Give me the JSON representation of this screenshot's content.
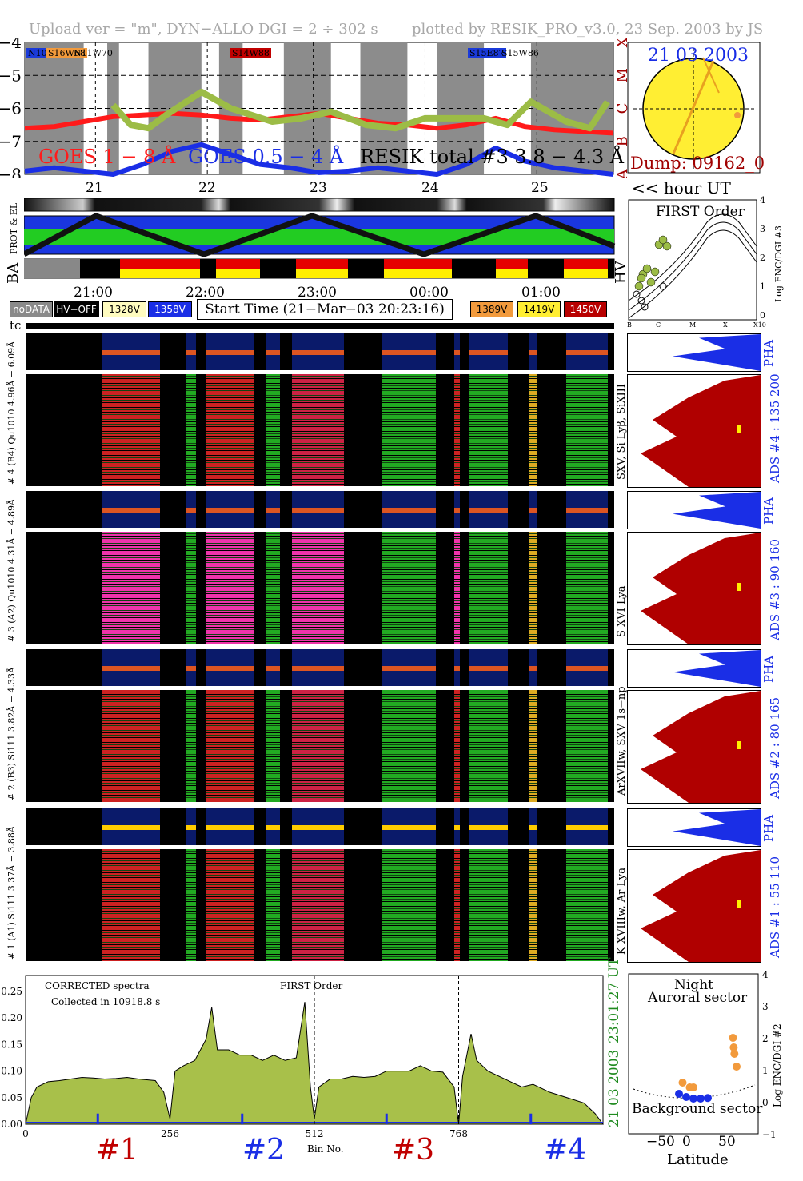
{
  "header": {
    "upload": "Upload ver = \"m\", DYN−ALLO DGI =   2 ÷ 302 s",
    "plotted": "plotted by RESIK_PRO_v3.0, 23 Sep. 2003 by JS"
  },
  "goes_panel": {
    "y_ticks": [
      "−4",
      "−5",
      "−6",
      "−7",
      "−8"
    ],
    "class_letters": [
      "X",
      "M",
      "C",
      "B",
      "A"
    ],
    "legend_goes_long": "GOES 1 − 8 Å",
    "legend_goes_short": "GOES 0.5 − 4 Å",
    "legend_resik": "RESIK total #3  3.8 − 4.3 Å",
    "flare_tags": [
      {
        "text": "N10E89",
        "color": "#1a3ad9"
      },
      {
        "text": "S16W68",
        "color": "#f29a3c"
      },
      {
        "text": "N11W70",
        "color": "#f29a3c"
      },
      {
        "text": "S14W88",
        "color": "#c00000"
      },
      {
        "text": "S15E87",
        "color": "#1a3ad9"
      },
      {
        "text": "S15W86",
        "color": "#f2a12e"
      }
    ],
    "colors": {
      "goes_long": "#ff1a1a",
      "goes_short": "#1a2ee6",
      "resik_green": "#9cbc46",
      "resik_orange": "#f29a3c",
      "shade": "#8c8c8c"
    }
  },
  "sun": {
    "date": "21 03 2003",
    "dump": "Dump: 09162_0"
  },
  "orbit_days": [
    "21",
    "22",
    "23",
    "24",
    "25"
  ],
  "hour_ut_label": "<< hour UT",
  "track_labels": {
    "prot": "PROT & EL",
    "ba": "BA",
    "hv": "HV"
  },
  "time_ticks": [
    "21:00",
    "22:00",
    "23:00",
    "00:00",
    "01:00"
  ],
  "legend": {
    "nodata": "noDATA",
    "hvoff": "HV−OFF",
    "v1328": "1328V",
    "v1358": "1358V",
    "start": "Start Time (21−Mar−03 20:23:16)",
    "v1389": "1389V",
    "v1419": "1419V",
    "v1450": "1450V"
  },
  "tc_label": "tc",
  "first_order_plot": {
    "title": "FIRST Order",
    "ylabel": "Log ENC/DGI #3",
    "y_ticks": [
      "4",
      "3",
      "2",
      "1",
      "0"
    ],
    "x_ticks": [
      "B",
      "C",
      "M",
      "X",
      "X10"
    ]
  },
  "channels": [
    {
      "pha_label": "# 4 (B4) Qu1010 4.96Å − 6.09Å",
      "lines": "SXV, Si Lyβ, SiXIII",
      "ads": "ADS #4 :   135 200",
      "pha": "PHA"
    },
    {
      "pha_label": "# 3 (A2) Qu1010 4.31Å − 4.89Å",
      "lines": "S XVI Lya",
      "ads": "ADS #3 :   90 160",
      "pha": "PHA"
    },
    {
      "pha_label": "# 2 (B3) Si111 3.82Å − 4.33Å",
      "lines": "ArXVIIw, SXV 1s−np",
      "ads": "ADS #2 :   80 165",
      "pha": "PHA"
    },
    {
      "pha_label": "# 1 (A1) Si111 3.37Å − 3.88Å",
      "lines": "K XVIIIw, Ar Lya",
      "ads": "ADS #1 :   55 110",
      "pha": "PHA"
    }
  ],
  "spectrum": {
    "note1": "CORRECTED spectra",
    "note2": "Collected in 10918.8 s",
    "order": "FIRST Order",
    "xlabel": "Bin No.",
    "x_ticks": [
      "0",
      "256",
      "512",
      "768"
    ],
    "y_ticks": [
      "0.25",
      "0.20",
      "0.15",
      "0.10",
      "0.05",
      "0.00"
    ],
    "side_time": "23:01:27 UT",
    "side_date": "21 03 2003",
    "channel_marks": [
      "#1",
      "#2",
      "#3",
      "#4"
    ]
  },
  "orbit_plot": {
    "night": "Night",
    "auroral": "Auroral sector",
    "background": "Background sector",
    "xlabel": "Latitude",
    "ylabel": "Log ENC/DGI #2",
    "x_ticks": [
      "−50",
      "0",
      "50"
    ],
    "y_ticks": [
      "4",
      "3",
      "2",
      "1",
      "0",
      "−1"
    ]
  },
  "chart_data": [
    {
      "type": "line",
      "title": "",
      "ylabel": "",
      "ylim": [
        -8,
        -4
      ],
      "xlim": [
        "21 20:23 UT",
        "25 ~02:00 UT"
      ],
      "series": [
        {
          "name": "GOES 1 − 8 Å",
          "x_frac": [
            0.0,
            0.05,
            0.1,
            0.15,
            0.2,
            0.25,
            0.3,
            0.35,
            0.4,
            0.45,
            0.5,
            0.55,
            0.6,
            0.65,
            0.7,
            0.75,
            0.8,
            0.85,
            0.9,
            0.95,
            1.0
          ],
          "values": [
            -6.6,
            -6.55,
            -6.4,
            -6.25,
            -6.2,
            -6.15,
            -6.2,
            -6.3,
            -6.35,
            -6.25,
            -6.15,
            -6.3,
            -6.45,
            -6.5,
            -6.6,
            -6.5,
            -6.3,
            -6.55,
            -6.65,
            -6.7,
            -6.75
          ]
        },
        {
          "name": "GOES 0.5 − 4 Å",
          "x_frac": [
            0.0,
            0.05,
            0.1,
            0.15,
            0.2,
            0.25,
            0.3,
            0.35,
            0.4,
            0.45,
            0.5,
            0.55,
            0.6,
            0.65,
            0.7,
            0.75,
            0.8,
            0.85,
            0.9,
            0.95,
            1.0
          ],
          "values": [
            -7.9,
            -7.8,
            -7.9,
            -8.0,
            -7.7,
            -7.3,
            -7.1,
            -7.4,
            -7.7,
            -7.8,
            -7.95,
            -7.9,
            -7.8,
            -7.9,
            -8.0,
            -7.7,
            -7.2,
            -7.6,
            -7.8,
            -7.9,
            -8.0
          ]
        },
        {
          "name": "RESIK total #3  3.8 − 4.3 Å",
          "x_frac": [
            0.15,
            0.18,
            0.21,
            0.24,
            0.3,
            0.35,
            0.42,
            0.47,
            0.52,
            0.58,
            0.63,
            0.68,
            0.78,
            0.82,
            0.86,
            0.92,
            0.96,
            0.99
          ],
          "values": [
            -5.9,
            -6.5,
            -6.6,
            -6.2,
            -5.5,
            -6.0,
            -6.4,
            -6.3,
            -6.1,
            -6.5,
            -6.6,
            -6.3,
            -6.3,
            -6.5,
            -5.8,
            -6.4,
            -6.6,
            -5.8
          ]
        }
      ]
    },
    {
      "type": "area",
      "title": "",
      "xlabel": "Bin No.",
      "ylabel": "",
      "xlim": [
        0,
        1024
      ],
      "ylim": [
        0,
        0.28
      ],
      "x": [
        0,
        10,
        20,
        40,
        60,
        80,
        100,
        120,
        140,
        160,
        180,
        200,
        230,
        245,
        256,
        265,
        280,
        300,
        320,
        330,
        340,
        360,
        380,
        400,
        420,
        440,
        460,
        480,
        495,
        505,
        512,
        520,
        540,
        560,
        580,
        600,
        620,
        640,
        660,
        680,
        700,
        720,
        740,
        760,
        768,
        775,
        790,
        800,
        820,
        850,
        880,
        900,
        930,
        960,
        990,
        1010,
        1024
      ],
      "values": [
        0.0,
        0.05,
        0.07,
        0.08,
        0.082,
        0.085,
        0.088,
        0.087,
        0.085,
        0.086,
        0.088,
        0.085,
        0.082,
        0.06,
        0.01,
        0.1,
        0.11,
        0.12,
        0.16,
        0.22,
        0.14,
        0.14,
        0.13,
        0.13,
        0.12,
        0.13,
        0.12,
        0.125,
        0.23,
        0.07,
        0.01,
        0.07,
        0.085,
        0.085,
        0.09,
        0.088,
        0.09,
        0.1,
        0.1,
        0.1,
        0.11,
        0.1,
        0.098,
        0.07,
        0.0,
        0.09,
        0.17,
        0.12,
        0.1,
        0.085,
        0.07,
        0.075,
        0.06,
        0.05,
        0.04,
        0.02,
        0.0
      ]
    },
    {
      "type": "scatter",
      "title": "",
      "xlabel": "Latitude",
      "ylabel": "Log ENC/DGI #2",
      "xlim": [
        -90,
        90
      ],
      "ylim": [
        -1,
        4
      ],
      "series": [
        {
          "name": "Background sector",
          "x": [
            -20,
            -10,
            0,
            10,
            20
          ],
          "y": [
            0.25,
            0.15,
            0.1,
            0.1,
            0.12
          ]
        },
        {
          "name": "Auroral sector",
          "x": [
            -15,
            -5,
            0,
            55,
            56,
            57,
            60
          ],
          "y": [
            0.6,
            0.45,
            0.45,
            2.0,
            1.7,
            1.5,
            1.1
          ]
        }
      ]
    }
  ]
}
